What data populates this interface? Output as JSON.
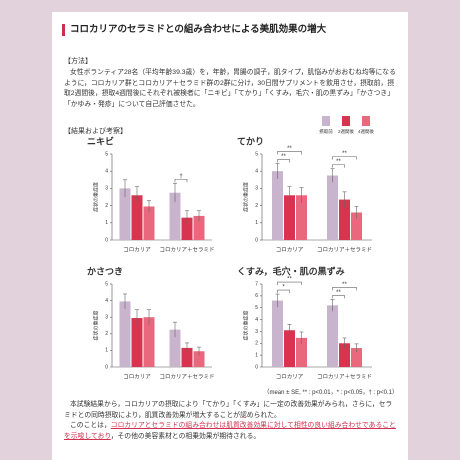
{
  "title": "コロカリアのセラミドとの組み合わせによる美肌効果の増大",
  "method": {
    "heading": "【方法】",
    "body": "女性ボランティア28名（平均年齢39.3歳）を，年齢，胃腸の調子，肌タイプ，肌悩みがおおむね均等になるように，コロカリア群とコロカリア＋セラミド群の2群に分け，30日間サプリメントを飲用させ，摂取前，摂取2週間後，摂取4週間後にそれぞれ被検者に「ニキビ」「てかり」「くすみ，毛穴・肌の黒ずみ」「かさつき」「かゆみ・発疹」について自己評価させた。"
  },
  "results_heading": "【結果および考察】",
  "footnote": "（mean ± SE, ** : p<0.01，* : p<0.05，† : p<0.1）",
  "conclusion": {
    "paragraph1": "本試験結果から，コロカリアの摂取により「てかり」「くすみ」に一定の改善効果がみられ，さらに，セラミドとの同時摂取により，肌質改善効果が増大することが認められた。",
    "paragraph2": [
      "このことは，",
      "コロカリアとセラミドの組み合わせは肌質改善効果に対して相性の良い組み合わせであることを示唆しており",
      "，その他の美容素材との相乗効果が期待される。"
    ]
  },
  "chart_data": [
    {
      "type": "bar",
      "title": "ニキビ",
      "y_label": "症状の重症度",
      "categories": [
        "コロカリア",
        "コロカリア＋セラミド"
      ],
      "ylim": [
        0,
        5
      ],
      "yticks": [
        0,
        1,
        2,
        3,
        4,
        5
      ],
      "series": [
        {
          "name": "摂取前",
          "color": "#c8b4cc",
          "values": [
            3.0,
            2.75
          ],
          "errors": [
            0.5,
            0.55
          ]
        },
        {
          "name": "2週間後",
          "color": "#d8344f",
          "values": [
            2.6,
            1.3
          ],
          "errors": [
            0.5,
            0.4
          ]
        },
        {
          "name": "4週間後",
          "color": "#e9687e",
          "values": [
            1.95,
            1.4
          ],
          "errors": [
            0.35,
            0.3
          ]
        }
      ],
      "annotations": [
        "†"
      ]
    },
    {
      "type": "bar",
      "title": "てかり",
      "y_label": "症状の重症度",
      "categories": [
        "コロカリア",
        "コロカリア＋セラミド"
      ],
      "ylim": [
        0,
        5
      ],
      "yticks": [
        0,
        1,
        2,
        3,
        4,
        5
      ],
      "series": [
        {
          "name": "摂取前",
          "color": "#c8b4cc",
          "values": [
            4.0,
            3.75
          ],
          "errors": [
            0.45,
            0.4
          ]
        },
        {
          "name": "2週間後",
          "color": "#d8344f",
          "values": [
            2.6,
            2.35
          ],
          "errors": [
            0.5,
            0.45
          ]
        },
        {
          "name": "4週間後",
          "color": "#e9687e",
          "values": [
            2.6,
            1.6
          ],
          "errors": [
            0.45,
            0.35
          ]
        }
      ],
      "annotations": [
        "**",
        "**",
        "**",
        "**"
      ]
    },
    {
      "type": "bar",
      "title": "かさつき",
      "y_label": "症状の重症度",
      "categories": [
        "コロカリア",
        "コロカリア＋セラミド"
      ],
      "ylim": [
        0,
        5
      ],
      "yticks": [
        0,
        1,
        2,
        3,
        4,
        5
      ],
      "series": [
        {
          "name": "摂取前",
          "color": "#c8b4cc",
          "values": [
            3.95,
            2.25
          ],
          "errors": [
            0.45,
            0.45
          ]
        },
        {
          "name": "2週間後",
          "color": "#d8344f",
          "values": [
            2.95,
            1.15
          ],
          "errors": [
            0.5,
            0.3
          ]
        },
        {
          "name": "4週間後",
          "color": "#e9687e",
          "values": [
            3.0,
            0.95
          ],
          "errors": [
            0.45,
            0.25
          ]
        }
      ],
      "annotations": []
    },
    {
      "type": "bar",
      "title": "くすみ，毛穴・肌の黒ずみ",
      "y_label": "症状の重症度",
      "categories": [
        "コロカリア",
        "コロカリア＋セラミド"
      ],
      "ylim": [
        0,
        7
      ],
      "yticks": [
        0,
        1,
        2,
        3,
        4,
        5,
        6,
        7
      ],
      "series": [
        {
          "name": "摂取前",
          "color": "#c8b4cc",
          "values": [
            5.6,
            5.2
          ],
          "errors": [
            0.55,
            0.5
          ]
        },
        {
          "name": "2週間後",
          "color": "#d8344f",
          "values": [
            3.1,
            2.0
          ],
          "errors": [
            0.5,
            0.45
          ]
        },
        {
          "name": "4週間後",
          "color": "#e9687e",
          "values": [
            2.45,
            1.6
          ],
          "errors": [
            0.5,
            0.35
          ]
        }
      ],
      "annotations": [
        "*",
        "**",
        "**",
        "**"
      ]
    }
  ]
}
